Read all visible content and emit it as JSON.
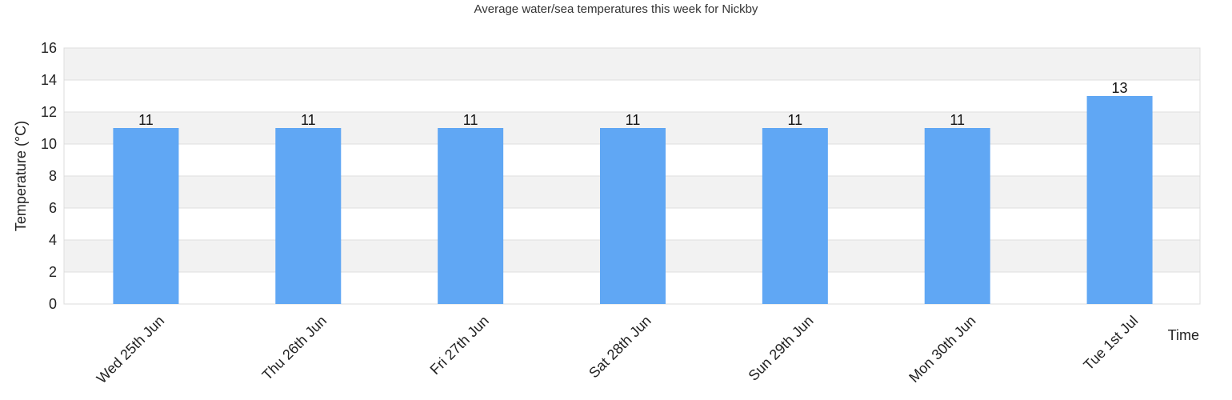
{
  "chart_data": {
    "type": "bar",
    "title": "Average water/sea temperatures this week for Nickby",
    "xlabel": "Time",
    "ylabel": "Temperature (°C)",
    "categories": [
      "Wed 25th Jun",
      "Thu 26th Jun",
      "Fri 27th Jun",
      "Sat 28th Jun",
      "Sun 29th Jun",
      "Mon 30th Jun",
      "Tue 1st Jul"
    ],
    "values": [
      11,
      11,
      11,
      11,
      11,
      11,
      13
    ],
    "ylim": [
      0,
      16
    ],
    "yticks": [
      0,
      2,
      4,
      6,
      8,
      10,
      12,
      14,
      16
    ],
    "grid": true,
    "legend": "none",
    "colors": {
      "bar": "#60a7f4",
      "band_alt": "#f2f2f2",
      "gridline": "#dddddd"
    }
  }
}
